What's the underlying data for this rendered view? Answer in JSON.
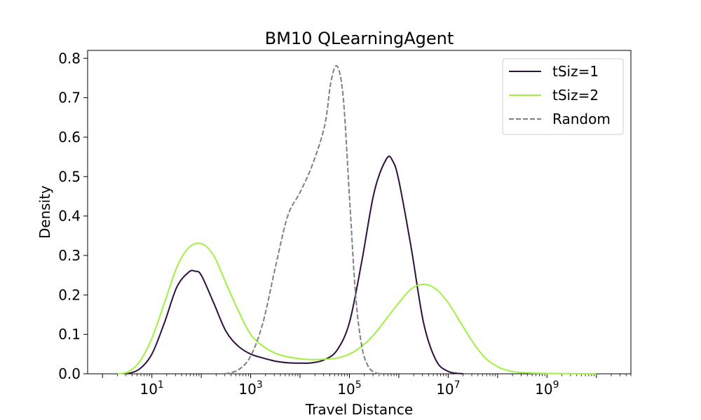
{
  "chart_data": {
    "type": "line",
    "title": "BM10 QLearningAgent",
    "xlabel": "Travel Distance",
    "ylabel": "Density",
    "xscale": "log",
    "xlim": [
      0.5,
      50000000000
    ],
    "ylim": [
      0,
      0.82
    ],
    "x_ticks": [
      {
        "value": 10,
        "base": "10",
        "exp": "1"
      },
      {
        "value": 1000,
        "base": "10",
        "exp": "3"
      },
      {
        "value": 100000,
        "base": "10",
        "exp": "5"
      },
      {
        "value": 10000000,
        "base": "10",
        "exp": "7"
      },
      {
        "value": 1000000000,
        "base": "10",
        "exp": "9"
      }
    ],
    "y_ticks": [
      {
        "value": 0.0,
        "label": "0.0"
      },
      {
        "value": 0.1,
        "label": "0.1"
      },
      {
        "value": 0.2,
        "label": "0.2"
      },
      {
        "value": 0.3,
        "label": "0.3"
      },
      {
        "value": 0.4,
        "label": "0.4"
      },
      {
        "value": 0.5,
        "label": "0.5"
      },
      {
        "value": 0.6,
        "label": "0.6"
      },
      {
        "value": 0.7,
        "label": "0.7"
      },
      {
        "value": 0.8,
        "label": "0.8"
      }
    ],
    "legend_position": "top-right",
    "grid": false,
    "series": [
      {
        "name": "tSiz=1",
        "color": "#2e0f3d",
        "dash": "solid",
        "x": [
          3.2,
          5.6,
          10,
          18,
          32,
          56,
          75,
          100,
          178,
          316,
          562,
          1000,
          1778,
          3162,
          5623,
          10000,
          17783,
          31623,
          56234,
          100000,
          177828,
          316228,
          562341,
          750000,
          1000000,
          1778279,
          3162278,
          5623413,
          10000000,
          20000000
        ],
        "y": [
          0.0,
          0.012,
          0.05,
          0.13,
          0.22,
          0.258,
          0.26,
          0.25,
          0.18,
          0.108,
          0.07,
          0.05,
          0.04,
          0.032,
          0.028,
          0.027,
          0.028,
          0.036,
          0.06,
          0.13,
          0.285,
          0.46,
          0.545,
          0.54,
          0.49,
          0.32,
          0.13,
          0.035,
          0.006,
          0.0
        ]
      },
      {
        "name": "tSiz=2",
        "color": "#a0f040",
        "dash": "solid",
        "x": [
          2,
          3.2,
          5.6,
          10,
          18,
          32,
          56,
          100,
          178,
          316,
          562,
          1000,
          1778,
          3162,
          5623,
          10000,
          17783,
          31623,
          56234,
          100000,
          177828,
          316228,
          562341,
          1000000,
          1778279,
          3162278,
          5623413,
          10000000,
          17782794,
          31622777,
          56234133,
          100000000,
          177827941,
          316227766,
          1000000000,
          10000000000
        ],
        "y": [
          0.0,
          0.004,
          0.03,
          0.09,
          0.18,
          0.27,
          0.32,
          0.33,
          0.3,
          0.23,
          0.16,
          0.1,
          0.07,
          0.052,
          0.043,
          0.038,
          0.036,
          0.037,
          0.04,
          0.05,
          0.07,
          0.1,
          0.14,
          0.18,
          0.215,
          0.227,
          0.215,
          0.18,
          0.13,
          0.08,
          0.04,
          0.018,
          0.007,
          0.003,
          0.001,
          0.0
        ]
      },
      {
        "name": "Random",
        "color": "#808080",
        "dash": "dashed",
        "x": [
          300,
          562,
          1000,
          1778,
          3162,
          5623,
          10000,
          17783,
          31623,
          42170,
          56234,
          75000,
          100000,
          133352,
          177828,
          237137,
          316228,
          421697
        ],
        "y": [
          0.0,
          0.01,
          0.045,
          0.13,
          0.27,
          0.4,
          0.46,
          0.53,
          0.63,
          0.74,
          0.78,
          0.7,
          0.45,
          0.2,
          0.07,
          0.02,
          0.004,
          0.0
        ]
      }
    ]
  }
}
